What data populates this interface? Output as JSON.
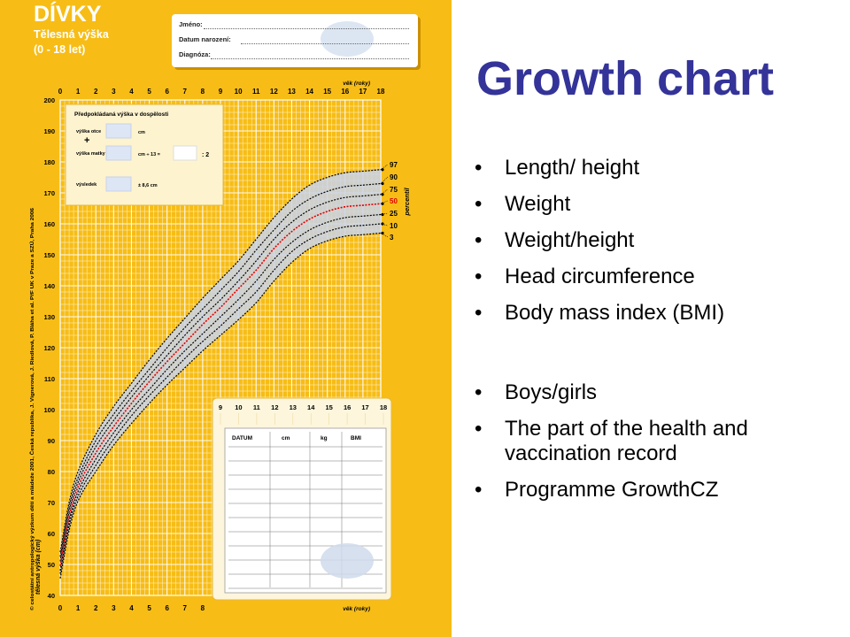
{
  "chart_panel": {
    "sheet_title": "DÍVKY",
    "sheet_subtitle": "Tělesná výška",
    "sheet_age_range": "(0 - 18 let)",
    "fields": [
      {
        "label": "Jméno:"
      },
      {
        "label": "Datum narození:"
      },
      {
        "label": "Diagnóza:"
      }
    ],
    "colors": {
      "background": "#f7bd16",
      "grid": "#ffffff",
      "median": "#e00000",
      "percentile": "#000000",
      "band": "#c9d3ea"
    }
  },
  "chart_data": {
    "type": "line",
    "title": "DÍVKY",
    "subtitle": "Tělesná výška (0 - 18 let)",
    "xlabel": "věk (roky)",
    "ylabel": "tělesná výška (cm)",
    "percentile_axis_label": "percentil",
    "xlim": [
      0,
      18
    ],
    "ylim": [
      40,
      200
    ],
    "x_ticks": [
      "0",
      "1",
      "2",
      "3",
      "4",
      "5",
      "6",
      "7",
      "8",
      "9",
      "10",
      "11",
      "12",
      "13",
      "14",
      "15",
      "16",
      "17",
      "18"
    ],
    "y_ticks": [
      "40",
      "50",
      "60",
      "70",
      "80",
      "90",
      "100",
      "110",
      "120",
      "130",
      "140",
      "150",
      "160",
      "170",
      "180",
      "190",
      "200"
    ],
    "x": [
      0,
      0.5,
      1,
      2,
      3,
      4,
      5,
      6,
      7,
      8,
      9,
      10,
      11,
      12,
      13,
      14,
      15,
      16,
      17,
      18
    ],
    "series": [
      {
        "name": "97",
        "values": [
          54,
          70,
          80,
          92,
          101,
          108.5,
          116,
          123,
          129.5,
          136,
          142,
          148,
          155,
          162,
          168,
          172.5,
          175,
          176.5,
          177,
          177.5
        ]
      },
      {
        "name": "90",
        "values": [
          52.5,
          68.5,
          78,
          90,
          98.5,
          106,
          113,
          120,
          126.5,
          132.5,
          138.5,
          144.5,
          151.5,
          158,
          164,
          168,
          170.5,
          172,
          172.5,
          173
        ]
      },
      {
        "name": "75",
        "values": [
          51,
          67,
          76.5,
          88,
          96.5,
          104,
          111,
          117.5,
          124,
          130,
          135.5,
          141.5,
          148,
          155,
          160.5,
          164.5,
          167,
          168.5,
          169,
          169.5
        ]
      },
      {
        "name": "50",
        "values": [
          49.5,
          65.5,
          75,
          86,
          94.5,
          102,
          109,
          115.5,
          121.5,
          127.5,
          133,
          139,
          145,
          152,
          157.5,
          161.5,
          164,
          165.5,
          166,
          166.5
        ]
      },
      {
        "name": "25",
        "values": [
          48,
          64,
          73.5,
          84,
          92.5,
          100,
          106.5,
          113,
          119,
          124.5,
          130,
          135.5,
          141.5,
          148.5,
          154,
          158,
          160.5,
          162,
          162.5,
          163
        ]
      },
      {
        "name": "10",
        "values": [
          47,
          62.5,
          72,
          82,
          90.5,
          98,
          104.5,
          110.5,
          116.5,
          122,
          127,
          132.5,
          138,
          145,
          151,
          155,
          157.5,
          159,
          159.5,
          160
        ]
      },
      {
        "name": "3",
        "values": [
          45.5,
          61,
          70.5,
          80,
          88.5,
          95.5,
          102,
          108,
          113.5,
          119,
          124,
          129,
          134.5,
          141.5,
          147.5,
          152,
          154.5,
          156,
          156.5,
          157
        ]
      }
    ],
    "prediction_box": {
      "title": "Předpokládaná výška v dospělosti",
      "rows": [
        {
          "label": "výška otce",
          "unit": "cm"
        },
        {
          "label": "+",
          "unit": ""
        },
        {
          "label": "výška matky",
          "unit": "cm ÷ 13 ="
        },
        {
          "label": "výsledek",
          "unit": "± 8,6 cm"
        }
      ],
      "divide_symbol": ": 2"
    },
    "record_table": {
      "x_ticks": [
        "9",
        "10",
        "11",
        "12",
        "13",
        "14",
        "15",
        "16",
        "17",
        "18"
      ],
      "columns": [
        "DATUM",
        "cm",
        "kg",
        "BMI"
      ]
    },
    "side_note": "© celostátní antropologický výzkum dětí a mládeže 2001, Česká republika, J. Vignerová, J. Riedlová, P. Bláha et al. PřF UK v Praze a SZÚ, Praha 2006",
    "grid": true
  },
  "slide": {
    "title": "Growth chart",
    "bullets_group1": [
      "Length/ height",
      "Weight",
      "Weight/height",
      "Head circumference",
      "Body mass index (BMI)"
    ],
    "bullets_group2": [
      "Boys/girls",
      "The part of the health and vaccination record",
      "Programme GrowthCZ"
    ]
  }
}
